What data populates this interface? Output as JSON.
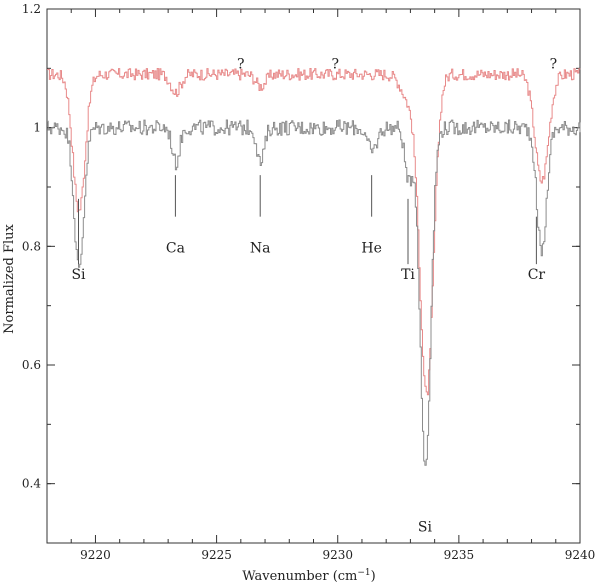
{
  "chart_data": {
    "type": "line",
    "title": "",
    "xlabel": "Wavenumber (cm",
    "xlabel_sup": "−1",
    "xlabel_close": ")",
    "ylabel": "Normalized Flux",
    "xlim": [
      9218,
      9240
    ],
    "ylim": [
      0.3,
      1.2
    ],
    "x_ticks": [
      9220,
      9225,
      9230,
      9235,
      9240
    ],
    "y_ticks": [
      0.4,
      0.6,
      0.8,
      1,
      1.2
    ],
    "grid": false,
    "series": [
      {
        "color": "#e88a8a",
        "continuum": 1.09,
        "noise": 0.01,
        "lines": [
          {
            "center": 9219.3,
            "depth": 0.23,
            "width": 0.25
          },
          {
            "center": 9223.3,
            "depth": 0.03,
            "width": 0.2
          },
          {
            "center": 9226.8,
            "depth": 0.02,
            "width": 0.2
          },
          {
            "center": 9232.9,
            "depth": 0.04,
            "width": 0.3
          },
          {
            "center": 9233.65,
            "depth": 0.54,
            "width": 0.28
          },
          {
            "center": 9238.4,
            "depth": 0.18,
            "width": 0.28
          }
        ]
      },
      {
        "color": "#8c8c8c",
        "continuum": 1.0,
        "noise": 0.013,
        "lines": [
          {
            "center": 9219.3,
            "depth": 0.24,
            "width": 0.2
          },
          {
            "center": 9223.3,
            "depth": 0.06,
            "width": 0.15
          },
          {
            "center": 9226.8,
            "depth": 0.06,
            "width": 0.15
          },
          {
            "center": 9231.4,
            "depth": 0.04,
            "width": 0.2
          },
          {
            "center": 9232.9,
            "depth": 0.09,
            "width": 0.15
          },
          {
            "center": 9233.6,
            "depth": 0.57,
            "width": 0.22
          },
          {
            "center": 9238.4,
            "depth": 0.21,
            "width": 0.2
          }
        ]
      }
    ],
    "annotations": [
      {
        "label": "Si",
        "x": 9219.3,
        "y": 0.765,
        "line_top": 0.88,
        "line_bottom": 0.77
      },
      {
        "label": "Ca",
        "x": 9223.3,
        "y": 0.81,
        "line_top": 0.92,
        "line_bottom": 0.85
      },
      {
        "label": "Na",
        "x": 9226.8,
        "y": 0.81,
        "line_top": 0.92,
        "line_bottom": 0.85
      },
      {
        "label": "He",
        "x": 9231.4,
        "y": 0.81,
        "line_top": 0.92,
        "line_bottom": 0.85
      },
      {
        "label": "Ti",
        "x": 9232.9,
        "y": 0.765,
        "line_top": 0.88,
        "line_bottom": 0.77
      },
      {
        "label": "Cr",
        "x": 9238.2,
        "y": 0.765,
        "line_top": 0.85,
        "line_bottom": 0.77
      },
      {
        "label": "Si",
        "x": 9233.6,
        "y": 0.34
      },
      {
        "label": "?",
        "x": 9226.0,
        "y": 1.12
      },
      {
        "label": "?",
        "x": 9229.9,
        "y": 1.12
      },
      {
        "label": "?",
        "x": 9238.9,
        "y": 1.12
      }
    ]
  }
}
